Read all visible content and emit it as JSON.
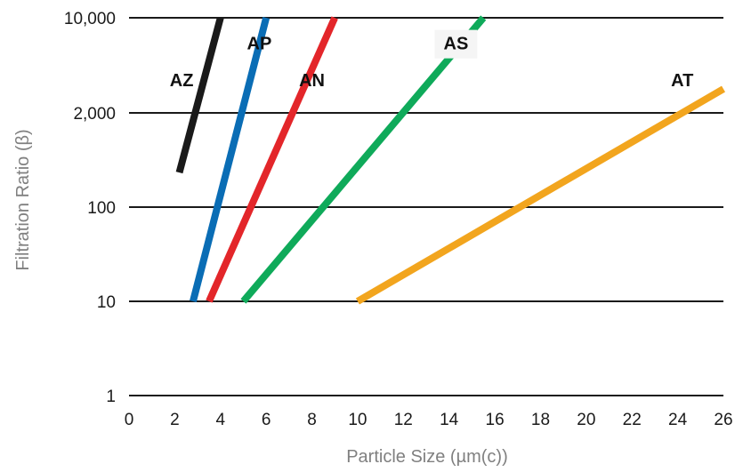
{
  "chart_data": {
    "type": "line",
    "title": "",
    "xlabel": "Particle Size (µm(c))",
    "ylabel": "Filtration Ratio (β)",
    "xlim": [
      0,
      26
    ],
    "ylim": [
      1,
      10000
    ],
    "y_scale": "log",
    "x_ticks": [
      "0",
      "2",
      "4",
      "6",
      "8",
      "10",
      "12",
      "14",
      "16",
      "18",
      "20",
      "22",
      "24",
      "26"
    ],
    "y_ticks": [
      {
        "value": 1,
        "label": "1"
      },
      {
        "value": 10,
        "label": "10"
      },
      {
        "value": 100,
        "label": "100"
      },
      {
        "value": 2000,
        "label": "2,000"
      },
      {
        "value": 10000,
        "label": "10,000"
      }
    ],
    "grid": "horizontal",
    "legend": "labels on lines",
    "series": [
      {
        "name": "AZ",
        "color": "#1a1a1a",
        "points": [
          [
            2.2,
            300
          ],
          [
            4.0,
            10000
          ]
        ]
      },
      {
        "name": "AP",
        "color": "#0a6db5",
        "points": [
          [
            2.8,
            10
          ],
          [
            6.0,
            10000
          ]
        ]
      },
      {
        "name": "AN",
        "color": "#e3262a",
        "points": [
          [
            3.5,
            10
          ],
          [
            9.0,
            10000
          ]
        ]
      },
      {
        "name": "AS",
        "color": "#0faa5a",
        "points": [
          [
            5.0,
            10
          ],
          [
            15.5,
            10000
          ]
        ]
      },
      {
        "name": "AT",
        "color": "#f2a51e",
        "points": [
          [
            10.0,
            10
          ],
          [
            26.0,
            3000
          ]
        ]
      }
    ]
  }
}
